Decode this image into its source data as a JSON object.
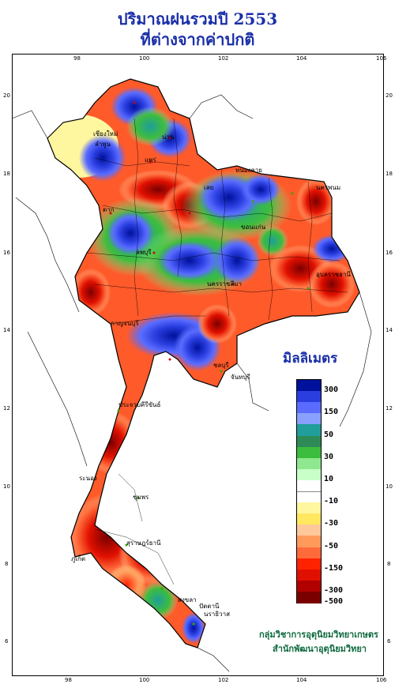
{
  "title": {
    "line1": "ปริมาณฝนรวมปี  2553",
    "line2": "ที่ต่างจากค่าปกติ"
  },
  "axes": {
    "x_ticks": [
      "98",
      "100",
      "102",
      "104",
      "106"
    ],
    "y_ticks": [
      "20",
      "18",
      "16",
      "14",
      "12",
      "10",
      "8",
      "6"
    ]
  },
  "legend": {
    "title": "มิลลิเมตร",
    "unit": "mm",
    "labels": [
      "300",
      "150",
      "50",
      "30",
      "10",
      "-10",
      "-30",
      "-50",
      "-150",
      "-300",
      "-500"
    ],
    "colors": [
      "#00119b",
      "#2a3ee0",
      "#5a6cff",
      "#8aa0ff",
      "#1f9e9a",
      "#2e8b57",
      "#3dbd3d",
      "#8fe88f",
      "#c8ffc8",
      "#ffffff",
      "#ffffff",
      "#fff6a0",
      "#ffe860",
      "#ffc89a",
      "#ff9a5a",
      "#ff6a3a",
      "#ff2200",
      "#e01000",
      "#b00000",
      "#7a0000"
    ]
  },
  "provinces": [
    "เชียงใหม่",
    "ลำพูน",
    "น่าน",
    "แพร่",
    "หนองคาย",
    "นครพนม",
    "ขอนแก่น",
    "อุบลราชธานี",
    "นครราชสีมา",
    "ชลบุรี",
    "ระนอง",
    "ภูเก็ต",
    "สงขลา",
    "นราธิวาส",
    "ลพบุรี",
    "ตาก",
    "เลย",
    "กาญจนบุรี",
    "ปัตตานี",
    "สุราษฎร์ธานี",
    "ชุมพร",
    "ประจวบคีรีขันธ์",
    "จันทบุรี"
  ],
  "credit": {
    "line1": "กลุ่มวิชาการอุตุนิยมวิทยาเกษตร",
    "line2": "สำนักพัฒนาอุตุนิยมวิทยา"
  }
}
